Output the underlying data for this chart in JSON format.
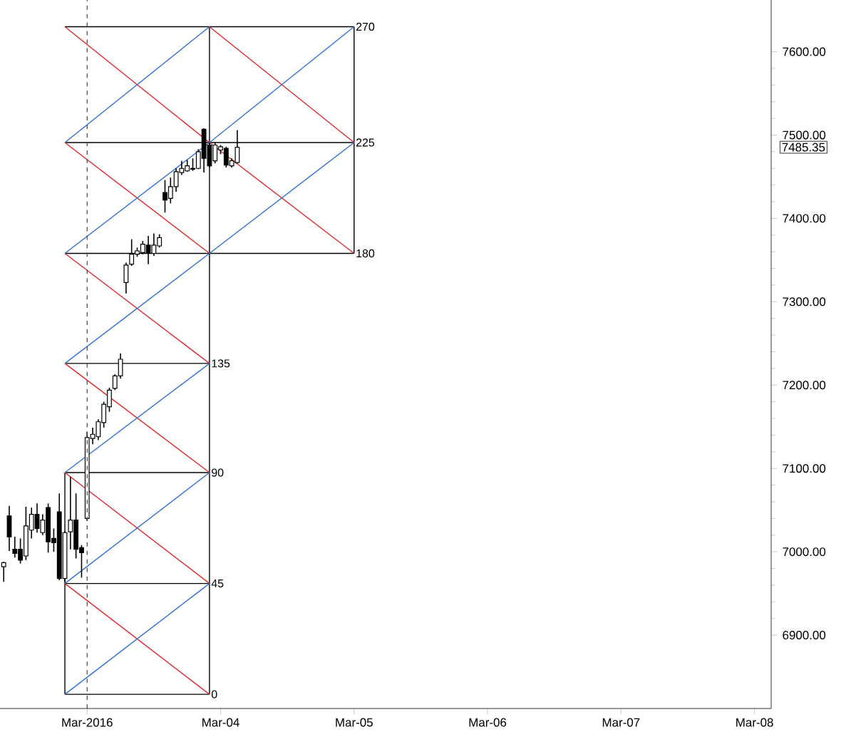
{
  "chart_data": {
    "type": "candlestick",
    "x": [
      "2016-03-02T09:00",
      "2016-03-02T10:00",
      "2016-03-02T11:00",
      "2016-03-02T12:00",
      "2016-03-02T13:00",
      "2016-03-02T14:00",
      "2016-03-02T15:00",
      "2016-03-02T16:00",
      "2016-03-02T17:00",
      "2016-03-02T18:00",
      "2016-03-02T19:00",
      "2016-03-02T20:00",
      "2016-03-02T21:00",
      "2016-03-02T22:00",
      "2016-03-02T23:00",
      "2016-03-03T00:00",
      "2016-03-03T01:00",
      "2016-03-03T02:00",
      "2016-03-03T03:00",
      "2016-03-03T04:00",
      "2016-03-03T05:00",
      "2016-03-03T06:00",
      "2016-03-03T07:00",
      "2016-03-03T08:00",
      "2016-03-03T09:00",
      "2016-03-03T10:00",
      "2016-03-03T11:00",
      "2016-03-03T12:00",
      "2016-03-03T13:00",
      "2016-03-03T14:00",
      "2016-03-03T15:00",
      "2016-03-03T16:00",
      "2016-03-03T17:00",
      "2016-03-03T18:00",
      "2016-03-03T19:00",
      "2016-03-03T20:00",
      "2016-03-03T21:00",
      "2016-03-03T22:00",
      "2016-03-03T23:00",
      "2016-03-04T00:00",
      "2016-03-04T01:00",
      "2016-03-04T02:00",
      "2016-03-04T03:00"
    ],
    "ohlc": [
      [
        6982,
        6988,
        6964,
        6987
      ],
      [
        7043,
        7055,
        7001,
        7018
      ],
      [
        7003,
        7018,
        6993,
        6998
      ],
      [
        7003,
        7016,
        6986,
        6990
      ],
      [
        6995,
        7054,
        6990,
        7031
      ],
      [
        7026,
        7053,
        7016,
        7045
      ],
      [
        7045,
        7058,
        7023,
        7028
      ],
      [
        7023,
        7045,
        7020,
        7038
      ],
      [
        7053,
        7058,
        6999,
        7012
      ],
      [
        7016,
        7028,
        7000,
        7011
      ],
      [
        7048,
        7070,
        6966,
        6968
      ],
      [
        6968,
        7025,
        6964,
        7023
      ],
      [
        7024,
        7090,
        7003,
        7038
      ],
      [
        7038,
        7070,
        6992,
        7003
      ],
      [
        7005,
        7008,
        6969,
        6999
      ],
      [
        7040,
        7144,
        7037,
        7137
      ],
      [
        7136,
        7149,
        7129,
        7141
      ],
      [
        7138,
        7159,
        7134,
        7156
      ],
      [
        7155,
        7180,
        7149,
        7177
      ],
      [
        7174,
        7197,
        7168,
        7194
      ],
      [
        7196,
        7213,
        7194,
        7211
      ],
      [
        7211,
        7238,
        7208,
        7231
      ],
      [
        7323,
        7347,
        7310,
        7344
      ],
      [
        7345,
        7375,
        7343,
        7357
      ],
      [
        7357,
        7365,
        7354,
        7361
      ],
      [
        7359,
        7373,
        7357,
        7369
      ],
      [
        7368,
        7379,
        7345,
        7359
      ],
      [
        7358,
        7382,
        7355,
        7368
      ],
      [
        7367,
        7381,
        7365,
        7377
      ],
      [
        7431,
        7446,
        7407,
        7422
      ],
      [
        7424,
        7449,
        7418,
        7438
      ],
      [
        7438,
        7460,
        7432,
        7456
      ],
      [
        7455,
        7469,
        7452,
        7460
      ],
      [
        7457,
        7470,
        7456,
        7463
      ],
      [
        7460,
        7472,
        7457,
        7459
      ],
      [
        7460,
        7483,
        7459,
        7480
      ],
      [
        7507,
        7508,
        7455,
        7472
      ],
      [
        7488,
        7491,
        7461,
        7463
      ],
      [
        7469,
        7491,
        7466,
        7488
      ],
      [
        7482,
        7488,
        7477,
        7486
      ],
      [
        7484,
        7486,
        7461,
        7464
      ],
      [
        7463,
        7472,
        7461,
        7469
      ],
      [
        7467,
        7506,
        7466,
        7485.35
      ]
    ],
    "color": "#000000",
    "series": [
      {
        "type": "line",
        "color": "#000000",
        "x": [
          "2016-03-02T20:00",
          "2016-03-03T22:00"
        ],
        "values": [
          6829,
          6829
        ]
      },
      {
        "type": "line",
        "color": "#000000",
        "x": [
          "2016-03-02T20:00",
          "2016-03-03T22:00"
        ],
        "values": [
          6962,
          6962
        ]
      },
      {
        "type": "line",
        "color": "#000000",
        "x": [
          "2016-03-02T20:00",
          "2016-03-03T22:00"
        ],
        "values": [
          7095,
          7095
        ]
      },
      {
        "type": "line",
        "color": "#000000",
        "x": [
          "2016-03-02T20:00",
          "2016-03-03T22:00"
        ],
        "values": [
          7226,
          7226
        ]
      },
      {
        "type": "line",
        "color": "#000000",
        "x": [
          "2016-03-02T20:00",
          "2016-03-05T00:00"
        ],
        "values": [
          7358,
          7358
        ]
      },
      {
        "type": "line",
        "color": "#000000",
        "x": [
          "2016-03-02T20:00",
          "2016-03-05T00:00"
        ],
        "values": [
          7491,
          7491
        ]
      },
      {
        "type": "line",
        "color": "#000000",
        "x": [
          "2016-03-02T20:00",
          "2016-03-05T00:00"
        ],
        "values": [
          7630,
          7630
        ]
      },
      {
        "type": "line",
        "color": "#000000",
        "x": [
          "2016-03-02T20:00",
          "2016-03-02T20:00"
        ],
        "values": [
          6829,
          7095
        ]
      },
      {
        "type": "line",
        "color": "#000000",
        "x": [
          "2016-03-03T22:00",
          "2016-03-03T22:00"
        ],
        "values": [
          6829,
          7630
        ]
      },
      {
        "type": "line",
        "color": "#000000",
        "x": [
          "2016-03-05T00:00",
          "2016-03-05T00:00"
        ],
        "values": [
          7358,
          7630
        ]
      },
      {
        "type": "line",
        "color": "#e02828",
        "x": [
          "2016-03-02T20:00",
          "2016-03-03T22:00"
        ],
        "values": [
          6962,
          6829
        ]
      },
      {
        "type": "line",
        "color": "#e02828",
        "x": [
          "2016-03-02T20:00",
          "2016-03-03T22:00"
        ],
        "values": [
          7095,
          6962
        ]
      },
      {
        "type": "line",
        "color": "#e02828",
        "x": [
          "2016-03-02T20:00",
          "2016-03-03T22:00"
        ],
        "values": [
          7226,
          7095
        ]
      },
      {
        "type": "line",
        "color": "#e02828",
        "x": [
          "2016-03-02T20:00",
          "2016-03-03T22:00"
        ],
        "values": [
          7358,
          7226
        ]
      },
      {
        "type": "line",
        "color": "#e02828",
        "x": [
          "2016-03-02T20:00",
          "2016-03-03T22:00"
        ],
        "values": [
          7491,
          7358
        ]
      },
      {
        "type": "line",
        "color": "#e02828",
        "x": [
          "2016-03-02T20:00",
          "2016-03-03T22:00",
          "2016-03-05T00:00"
        ],
        "values": [
          7630,
          7491,
          7358
        ]
      },
      {
        "type": "line",
        "color": "#e02828",
        "x": [
          "2016-03-03T22:00",
          "2016-03-05T00:00"
        ],
        "values": [
          7630,
          7491
        ]
      },
      {
        "type": "line",
        "color": "#2f6fd6",
        "x": [
          "2016-03-02T20:00",
          "2016-03-03T22:00"
        ],
        "values": [
          6829,
          6962
        ]
      },
      {
        "type": "line",
        "color": "#2f6fd6",
        "x": [
          "2016-03-02T20:00",
          "2016-03-03T22:00"
        ],
        "values": [
          6962,
          7095
        ]
      },
      {
        "type": "line",
        "color": "#2f6fd6",
        "x": [
          "2016-03-02T20:00",
          "2016-03-03T22:00"
        ],
        "values": [
          7095,
          7226
        ]
      },
      {
        "type": "line",
        "color": "#2f6fd6",
        "x": [
          "2016-03-02T20:00",
          "2016-03-03T22:00",
          "2016-03-05T00:00"
        ],
        "values": [
          7226,
          7358,
          7491
        ]
      },
      {
        "type": "line",
        "color": "#2f6fd6",
        "x": [
          "2016-03-02T20:00",
          "2016-03-03T22:00",
          "2016-03-05T00:00"
        ],
        "values": [
          7358,
          7491,
          7630
        ]
      },
      {
        "type": "line",
        "color": "#2f6fd6",
        "x": [
          "2016-03-02T20:00",
          "2016-03-03T22:00"
        ],
        "values": [
          7491,
          7630
        ]
      }
    ],
    "xlim": [
      "2016-03-02T08:20",
      "2016-03-08T03:00"
    ],
    "xticks": [
      {
        "value": "2016-03-03",
        "label": "Mar-2016"
      },
      {
        "value": "2016-03-04",
        "label": "Mar-04"
      },
      {
        "value": "2016-03-05",
        "label": "Mar-05"
      },
      {
        "value": "2016-03-06",
        "label": "Mar-06"
      },
      {
        "value": "2016-03-07",
        "label": "Mar-07"
      },
      {
        "value": "2016-03-08",
        "label": "Mar-08"
      }
    ],
    "ylim": [
      6812,
      7662
    ],
    "yticks": [
      {
        "value": 6900,
        "label": "6900.00"
      },
      {
        "value": 7000,
        "label": "7000.00"
      },
      {
        "value": 7100,
        "label": "7100.00"
      },
      {
        "value": 7200,
        "label": "7200.00"
      },
      {
        "value": 7300,
        "label": "7300.00"
      },
      {
        "value": 7400,
        "label": "7400.00"
      },
      {
        "value": 7500,
        "label": "7500.00"
      },
      {
        "value": 7600,
        "label": "7600.00"
      }
    ],
    "ref_lines": [
      {
        "axis": "x",
        "value": "2016-03-03T00:00",
        "color": "#444444",
        "line_style": "dashed"
      }
    ],
    "annotations": [
      {
        "text": "0",
        "x": "2016-03-03T22:00",
        "y": 6829
      },
      {
        "text": "45",
        "x": "2016-03-03T22:00",
        "y": 6962
      },
      {
        "text": "90",
        "x": "2016-03-03T22:00",
        "y": 7095
      },
      {
        "text": "135",
        "x": "2016-03-03T22:00",
        "y": 7226
      },
      {
        "text": "180",
        "x": "2016-03-05T00:00",
        "y": 7358
      },
      {
        "text": "225",
        "x": "2016-03-05T00:00",
        "y": 7491
      },
      {
        "text": "270",
        "x": "2016-03-05T00:00",
        "y": 7630
      },
      "7485.35"
    ]
  }
}
